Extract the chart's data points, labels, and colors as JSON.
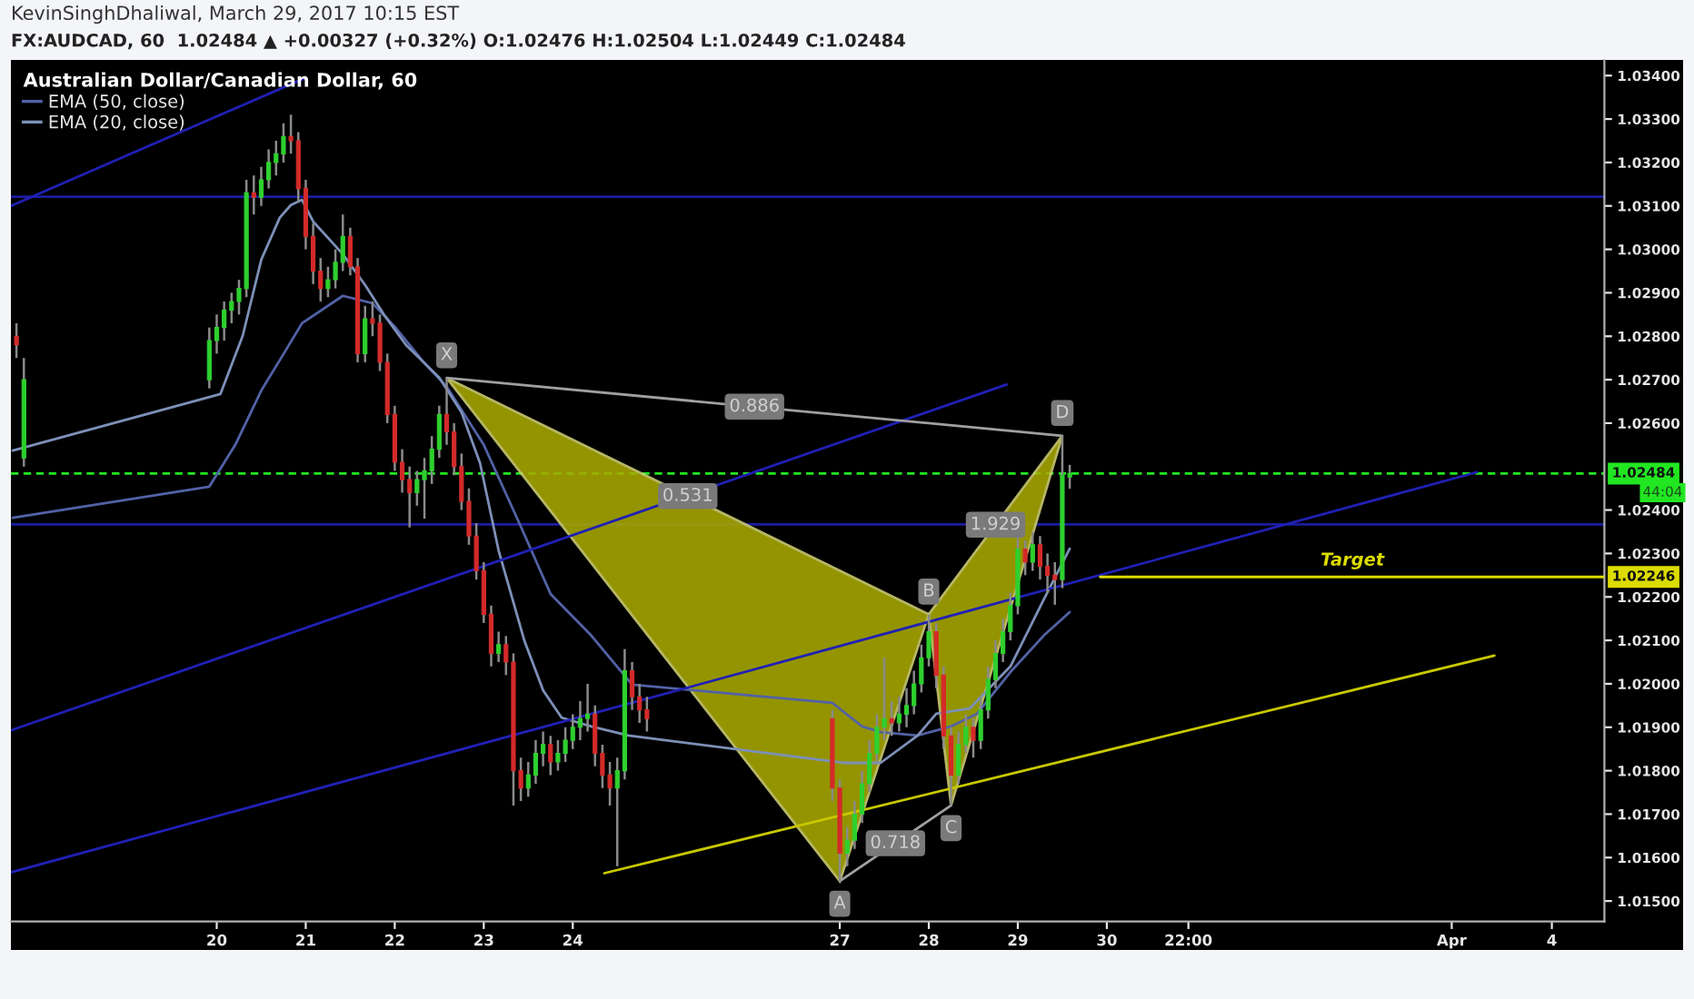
{
  "chart_data": {
    "type": "candlestick",
    "title": "KevinSinghDhaliwal, March 29, 2017 10:15 EST",
    "subtitle": "FX:AUDCAD, 60  1.02484 ▲ +0.00327 (+0.32%) O:1.02476 H:1.02504 L:1.02449 C:1.02484",
    "legend_title": "Australian Dollar/Canadian Dollar, 60",
    "legend": "top left",
    "xlim": [
      "2017-03-17T16:30",
      "2017-04-04T14:10"
    ],
    "ylim": [
      1.01453,
      1.03436
    ],
    "xticks": [
      {
        "value": "2017-03-20",
        "label": "20"
      },
      {
        "value": "2017-03-21",
        "label": "21"
      },
      {
        "value": "2017-03-22",
        "label": "22"
      },
      {
        "value": "2017-03-23",
        "label": "23"
      },
      {
        "value": "2017-03-24",
        "label": "24"
      },
      {
        "value": "2017-03-27",
        "label": "27"
      },
      {
        "value": "2017-03-28",
        "label": "28"
      },
      {
        "value": "2017-03-29",
        "label": "29"
      },
      {
        "value": "2017-03-30",
        "label": "30"
      },
      {
        "value": "2017-03-30T22:00",
        "label": "22:00"
      },
      {
        "value": "2017-04-02T21:00",
        "label": "Apr"
      },
      {
        "value": "2017-04-04",
        "label": "4"
      }
    ],
    "yticks": [
      {
        "value": 1.015,
        "label": "1.01500"
      },
      {
        "value": 1.016,
        "label": "1.01600"
      },
      {
        "value": 1.017,
        "label": "1.01700"
      },
      {
        "value": 1.018,
        "label": "1.01800"
      },
      {
        "value": 1.019,
        "label": "1.01900"
      },
      {
        "value": 1.02,
        "label": "1.02000"
      },
      {
        "value": 1.021,
        "label": "1.02100"
      },
      {
        "value": 1.022,
        "label": "1.02200"
      },
      {
        "value": 1.023,
        "label": "1.02300"
      },
      {
        "value": 1.024,
        "label": "1.02400"
      },
      {
        "value": 1.026,
        "label": "1.02600"
      },
      {
        "value": 1.027,
        "label": "1.02700"
      },
      {
        "value": 1.028,
        "label": "1.02800"
      },
      {
        "value": 1.029,
        "label": "1.02900"
      },
      {
        "value": 1.03,
        "label": "1.03000"
      },
      {
        "value": 1.031,
        "label": "1.03100"
      },
      {
        "value": 1.032,
        "label": "1.03200"
      },
      {
        "value": 1.033,
        "label": "1.03300"
      },
      {
        "value": 1.034,
        "label": "1.03400"
      }
    ],
    "series": [
      {
        "color": "#8a8a8a",
        "x": [
          "2017-03-17T18:00",
          "2017-03-17T20:00",
          "2017-03-19T22:00",
          "2017-03-20T00:00",
          "2017-03-20T02:00",
          "2017-03-20T04:00",
          "2017-03-20T06:00",
          "2017-03-20T08:00",
          "2017-03-20T10:00",
          "2017-03-20T12:00",
          "2017-03-20T14:00",
          "2017-03-20T16:00",
          "2017-03-20T18:00",
          "2017-03-20T20:00",
          "2017-03-20T22:00",
          "2017-03-21T00:00",
          "2017-03-21T02:00",
          "2017-03-21T04:00",
          "2017-03-21T06:00",
          "2017-03-21T08:00",
          "2017-03-21T10:00",
          "2017-03-21T12:00",
          "2017-03-21T14:00",
          "2017-03-21T16:00",
          "2017-03-21T18:00",
          "2017-03-21T20:00",
          "2017-03-21T22:00",
          "2017-03-22T00:00",
          "2017-03-22T02:00",
          "2017-03-22T04:00",
          "2017-03-22T06:00",
          "2017-03-22T08:00",
          "2017-03-22T10:00",
          "2017-03-22T12:00",
          "2017-03-22T14:00",
          "2017-03-22T16:00",
          "2017-03-22T18:00",
          "2017-03-22T20:00",
          "2017-03-22T22:00",
          "2017-03-23T00:00",
          "2017-03-23T02:00",
          "2017-03-23T04:00",
          "2017-03-23T06:00",
          "2017-03-23T08:00",
          "2017-03-23T10:00",
          "2017-03-23T12:00",
          "2017-03-23T14:00",
          "2017-03-23T16:00",
          "2017-03-23T18:00",
          "2017-03-23T20:00",
          "2017-03-23T22:00",
          "2017-03-24T00:00",
          "2017-03-24T02:00",
          "2017-03-24T04:00",
          "2017-03-24T06:00",
          "2017-03-24T08:00",
          "2017-03-24T10:00",
          "2017-03-24T12:00",
          "2017-03-24T14:00",
          "2017-03-24T16:00",
          "2017-03-24T18:00",
          "2017-03-24T20:00",
          "2017-03-26T22:00",
          "2017-03-27T00:00",
          "2017-03-27T02:00",
          "2017-03-27T04:00",
          "2017-03-27T06:00",
          "2017-03-27T08:00",
          "2017-03-27T10:00",
          "2017-03-27T12:00",
          "2017-03-27T14:00",
          "2017-03-27T16:00",
          "2017-03-27T18:00",
          "2017-03-27T20:00",
          "2017-03-27T22:00",
          "2017-03-28T00:00",
          "2017-03-28T02:00",
          "2017-03-28T04:00",
          "2017-03-28T06:00",
          "2017-03-28T08:00",
          "2017-03-28T10:00",
          "2017-03-28T12:00",
          "2017-03-28T14:00",
          "2017-03-28T16:00",
          "2017-03-28T18:00",
          "2017-03-28T20:00",
          "2017-03-28T22:00",
          "2017-03-29T00:00",
          "2017-03-29T02:00",
          "2017-03-29T04:00",
          "2017-03-29T06:00",
          "2017-03-29T08:00",
          "2017-03-29T10:00",
          "2017-03-29T12:00",
          "2017-03-29T14:00"
        ],
        "ohlc": [
          [
            1.028,
            1.0283,
            1.0275,
            1.0278
          ],
          [
            1.0252,
            1.0275,
            1.025,
            1.027
          ],
          [
            1.027,
            1.0282,
            1.0268,
            1.0279
          ],
          [
            1.0279,
            1.0285,
            1.0276,
            1.0282
          ],
          [
            1.0282,
            1.0288,
            1.0279,
            1.0286
          ],
          [
            1.0286,
            1.029,
            1.0283,
            1.0288
          ],
          [
            1.0288,
            1.0293,
            1.0285,
            1.0291
          ],
          [
            1.0291,
            1.0316,
            1.0289,
            1.0313
          ],
          [
            1.0313,
            1.0317,
            1.0308,
            1.0312
          ],
          [
            1.0312,
            1.0319,
            1.031,
            1.0316
          ],
          [
            1.0316,
            1.0323,
            1.0314,
            1.032
          ],
          [
            1.032,
            1.0325,
            1.0317,
            1.0322
          ],
          [
            1.0322,
            1.0329,
            1.032,
            1.0326
          ],
          [
            1.0326,
            1.0331,
            1.0322,
            1.0325
          ],
          [
            1.0325,
            1.0327,
            1.0311,
            1.0314
          ],
          [
            1.0314,
            1.0316,
            1.03,
            1.0303
          ],
          [
            1.0303,
            1.0306,
            1.0292,
            1.0295
          ],
          [
            1.0295,
            1.0298,
            1.0288,
            1.0291
          ],
          [
            1.0291,
            1.0296,
            1.0289,
            1.0293
          ],
          [
            1.0293,
            1.03,
            1.0291,
            1.0297
          ],
          [
            1.0297,
            1.0308,
            1.0295,
            1.0303
          ],
          [
            1.0303,
            1.0305,
            1.0294,
            1.0296
          ],
          [
            1.0296,
            1.0298,
            1.0274,
            1.0276
          ],
          [
            1.0276,
            1.0287,
            1.0274,
            1.0284
          ],
          [
            1.0284,
            1.0288,
            1.028,
            1.0283
          ],
          [
            1.0283,
            1.0285,
            1.0272,
            1.0274
          ],
          [
            1.0274,
            1.0276,
            1.026,
            1.0262
          ],
          [
            1.0262,
            1.0264,
            1.0249,
            1.0251
          ],
          [
            1.0251,
            1.0254,
            1.0244,
            1.0247
          ],
          [
            1.0247,
            1.025,
            1.0236,
            1.0244
          ],
          [
            1.0244,
            1.0249,
            1.0241,
            1.0247
          ],
          [
            1.0247,
            1.0252,
            1.0238,
            1.0249
          ],
          [
            1.0249,
            1.0257,
            1.0246,
            1.0254
          ],
          [
            1.0254,
            1.0264,
            1.0252,
            1.0262
          ],
          [
            1.0262,
            1.02704,
            1.0255,
            1.0258
          ],
          [
            1.0258,
            1.026,
            1.0248,
            1.025
          ],
          [
            1.025,
            1.0253,
            1.024,
            1.0242
          ],
          [
            1.0242,
            1.0245,
            1.0232,
            1.0234
          ],
          [
            1.0234,
            1.0237,
            1.0224,
            1.0226
          ],
          [
            1.0226,
            1.0228,
            1.0214,
            1.0216
          ],
          [
            1.0216,
            1.0218,
            1.0204,
            1.0207
          ],
          [
            1.0207,
            1.0212,
            1.0205,
            1.0209
          ],
          [
            1.0209,
            1.0211,
            1.0202,
            1.0205
          ],
          [
            1.0205,
            1.0207,
            1.0172,
            1.018
          ],
          [
            1.018,
            1.0183,
            1.0173,
            1.0176
          ],
          [
            1.0176,
            1.0182,
            1.0174,
            1.0179
          ],
          [
            1.0179,
            1.0187,
            1.0177,
            1.0184
          ],
          [
            1.0184,
            1.0189,
            1.0181,
            1.0186
          ],
          [
            1.0186,
            1.0188,
            1.0179,
            1.0182
          ],
          [
            1.0182,
            1.0187,
            1.018,
            1.0184
          ],
          [
            1.0184,
            1.019,
            1.0182,
            1.0187
          ],
          [
            1.0187,
            1.0193,
            1.0185,
            1.019
          ],
          [
            1.019,
            1.0196,
            1.0187,
            1.0192
          ],
          [
            1.0192,
            1.02,
            1.0189,
            1.0193
          ],
          [
            1.0193,
            1.0195,
            1.0181,
            1.0184
          ],
          [
            1.0184,
            1.0186,
            1.0176,
            1.0179
          ],
          [
            1.0179,
            1.0182,
            1.0172,
            1.0176
          ],
          [
            1.0176,
            1.0183,
            1.0158,
            1.018
          ],
          [
            1.018,
            1.0208,
            1.0178,
            1.0203
          ],
          [
            1.0203,
            1.0205,
            1.0194,
            1.0197
          ],
          [
            1.0197,
            1.02,
            1.0191,
            1.0194
          ],
          [
            1.0194,
            1.0197,
            1.0189,
            1.0192
          ],
          [
            1.0192,
            1.0194,
            1.0173,
            1.0176
          ],
          [
            1.0176,
            1.0178,
            1.01546,
            1.0161
          ],
          [
            1.0161,
            1.0167,
            1.0158,
            1.0164
          ],
          [
            1.0164,
            1.0173,
            1.0162,
            1.017
          ],
          [
            1.017,
            1.018,
            1.0168,
            1.0177
          ],
          [
            1.0177,
            1.0187,
            1.0175,
            1.0184
          ],
          [
            1.0184,
            1.0193,
            1.0182,
            1.019
          ],
          [
            1.019,
            1.0206,
            1.0187,
            1.0192
          ],
          [
            1.0192,
            1.0196,
            1.0188,
            1.0191
          ],
          [
            1.0191,
            1.0197,
            1.0189,
            1.0193
          ],
          [
            1.0193,
            1.0199,
            1.019,
            1.0195
          ],
          [
            1.0195,
            1.0203,
            1.0193,
            1.02
          ],
          [
            1.02,
            1.0209,
            1.0198,
            1.0206
          ],
          [
            1.0206,
            1.0216,
            1.0204,
            1.0212
          ],
          [
            1.0212,
            1.0214,
            1.0199,
            1.0202
          ],
          [
            1.0202,
            1.0204,
            1.0185,
            1.0188
          ],
          [
            1.0188,
            1.019,
            1.0172,
            1.0179
          ],
          [
            1.0179,
            1.0189,
            1.0177,
            1.0186
          ],
          [
            1.0186,
            1.0193,
            1.0184,
            1.019
          ],
          [
            1.019,
            1.0192,
            1.0183,
            1.0187
          ],
          [
            1.0187,
            1.0197,
            1.0185,
            1.0194
          ],
          [
            1.0194,
            1.0204,
            1.0192,
            1.0201
          ],
          [
            1.0201,
            1.021,
            1.0199,
            1.0207
          ],
          [
            1.0207,
            1.0215,
            1.0205,
            1.0212
          ],
          [
            1.0212,
            1.0221,
            1.021,
            1.0218
          ],
          [
            1.0218,
            1.0234,
            1.0216,
            1.0231
          ],
          [
            1.0231,
            1.0233,
            1.0225,
            1.0228
          ],
          [
            1.0228,
            1.0235,
            1.0226,
            1.0232
          ],
          [
            1.0232,
            1.0234,
            1.0224,
            1.0227
          ],
          [
            1.0227,
            1.023,
            1.0221,
            1.0225
          ],
          [
            1.0225,
            1.0228,
            1.02182,
            1.0224
          ],
          [
            1.0224,
            1.02571,
            1.0222,
            1.0248
          ],
          [
            1.02476,
            1.02504,
            1.02449,
            1.02484
          ]
        ],
        "colors": [
          "#d42a2a",
          "#2ed02e",
          "#2ed02e",
          "#2ed02e",
          "#2ed02e",
          "#2ed02e",
          "#2ed02e",
          "#2ed02e",
          "#d42a2a",
          "#2ed02e",
          "#2ed02e",
          "#2ed02e",
          "#2ed02e",
          "#d42a2a",
          "#d42a2a",
          "#d42a2a",
          "#d42a2a",
          "#d42a2a",
          "#2ed02e",
          "#2ed02e",
          "#2ed02e",
          "#d42a2a",
          "#d42a2a",
          "#2ed02e",
          "#d42a2a",
          "#d42a2a",
          "#d42a2a",
          "#d42a2a",
          "#d42a2a",
          "#d42a2a",
          "#2ed02e",
          "#2ed02e",
          "#2ed02e",
          "#2ed02e",
          "#d42a2a",
          "#d42a2a",
          "#d42a2a",
          "#d42a2a",
          "#d42a2a",
          "#d42a2a",
          "#d42a2a",
          "#2ed02e",
          "#d42a2a",
          "#d42a2a",
          "#d42a2a",
          "#2ed02e",
          "#2ed02e",
          "#2ed02e",
          "#d42a2a",
          "#2ed02e",
          "#2ed02e",
          "#2ed02e",
          "#2ed02e",
          "#2ed02e",
          "#d42a2a",
          "#d42a2a",
          "#d42a2a",
          "#2ed02e",
          "#2ed02e",
          "#d42a2a",
          "#d42a2a",
          "#d42a2a",
          "#d42a2a",
          "#d42a2a",
          "#2ed02e",
          "#2ed02e",
          "#2ed02e",
          "#2ed02e",
          "#2ed02e",
          "#2ed02e",
          "#d42a2a",
          "#2ed02e",
          "#2ed02e",
          "#2ed02e",
          "#2ed02e",
          "#2ed02e",
          "#d42a2a",
          "#d42a2a",
          "#d42a2a",
          "#2ed02e",
          "#2ed02e",
          "#d42a2a",
          "#2ed02e",
          "#2ed02e",
          "#2ed02e",
          "#2ed02e",
          "#2ed02e",
          "#2ed02e",
          "#d42a2a",
          "#2ed02e",
          "#d42a2a",
          "#d42a2a",
          "#d42a2a",
          "#2ed02e",
          "#2ed02e"
        ]
      },
      {
        "type": "line",
        "name": "EMA (50, close)",
        "color": "#5262a6",
        "x": [
          "2017-03-17T17:00",
          "2017-03-19T22:00",
          "2017-03-20T05:00",
          "2017-03-20T12:00",
          "2017-03-20T18:00",
          "2017-03-20T23:00",
          "2017-03-21T10:00",
          "2017-03-21T18:00",
          "2017-03-22T00:00",
          "2017-03-22T08:00",
          "2017-03-22T14:00",
          "2017-03-23T00:00",
          "2017-03-23T10:00",
          "2017-03-23T18:00",
          "2017-03-24T05:00",
          "2017-03-24T16:00",
          "2017-03-26T22:00",
          "2017-03-27T06:00",
          "2017-03-27T11:00",
          "2017-03-27T21:00",
          "2017-03-28T06:00",
          "2017-03-28T13:00",
          "2017-03-28T22:00",
          "2017-03-29T07:00",
          "2017-03-29T14:00"
        ],
        "values": [
          1.02382,
          1.02454,
          1.0255,
          1.02675,
          1.02759,
          1.0283,
          1.02893,
          1.02876,
          1.02822,
          1.02738,
          1.02684,
          1.0255,
          1.02362,
          1.02207,
          1.02111,
          1.01998,
          1.01956,
          1.01902,
          1.01889,
          1.01881,
          1.01902,
          1.01931,
          1.02027,
          1.02111,
          1.02165
        ]
      },
      {
        "type": "line",
        "name": "EMA (20, close)",
        "color": "#7d90b8",
        "x": [
          "2017-03-17T17:00",
          "2017-03-20T01:00",
          "2017-03-20T07:00",
          "2017-03-20T12:00",
          "2017-03-20T17:00",
          "2017-03-20T20:00",
          "2017-03-20T23:00",
          "2017-03-21T02:00",
          "2017-03-21T10:00",
          "2017-03-21T16:00",
          "2017-03-21T21:00",
          "2017-03-22T03:00",
          "2017-03-22T12:00",
          "2017-03-22T18:00",
          "2017-03-22T23:00",
          "2017-03-23T04:00",
          "2017-03-23T11:00",
          "2017-03-23T16:00",
          "2017-03-23T21:00",
          "2017-03-24T05:00",
          "2017-03-24T15:00",
          "2017-03-27T01:00",
          "2017-03-27T11:00",
          "2017-03-27T21:00",
          "2017-03-28T02:00",
          "2017-03-28T11:00",
          "2017-03-28T22:00",
          "2017-03-29T07:00",
          "2017-03-29T14:00"
        ],
        "values": [
          1.02537,
          1.02667,
          1.02801,
          1.02976,
          1.03073,
          1.03102,
          1.03114,
          1.03064,
          1.02989,
          1.02918,
          1.02851,
          1.0278,
          1.02705,
          1.02625,
          1.02508,
          1.02307,
          1.02098,
          1.01985,
          1.01922,
          1.01902,
          1.01881,
          1.01818,
          1.01818,
          1.01881,
          1.01931,
          1.01943,
          1.0204,
          1.02194,
          1.02311
        ]
      },
      {
        "type": "line",
        "color": "#2020b4",
        "x": [
          "2017-03-17T16:30",
          "2017-03-21T00:00"
        ],
        "values": [
          1.031,
          1.03395
        ]
      },
      {
        "type": "line",
        "color": "#2020b4",
        "x": [
          "2017-03-17T16:30",
          "2017-03-28T21:00"
        ],
        "values": [
          1.01893,
          1.02689
        ]
      },
      {
        "type": "line",
        "color": "#2020b4",
        "x": [
          "2017-03-17T16:30",
          "2017-04-03T03:45"
        ],
        "values": [
          1.01566,
          1.02487
        ]
      },
      {
        "type": "line",
        "color": "#c8c800",
        "x": [
          "2017-03-24T08:30",
          "2017-04-03T08:30"
        ],
        "values": [
          1.01564,
          1.02065
        ]
      },
      {
        "type": "line",
        "name": "Target",
        "color": "#dcdc00",
        "x": [
          "2017-03-29T22:15",
          "2017-04-04T14:10"
        ],
        "values": [
          1.02246,
          1.02246
        ],
        "value_labels": [
          null,
          "1.02246"
        ]
      },
      {
        "type": "area",
        "color": "#a9a900",
        "x": [
          "2017-03-22T14:00",
          "2017-03-27T00:00",
          "2017-03-28T00:00"
        ],
        "values": [
          1.02704,
          1.01546,
          1.0216
        ]
      },
      {
        "type": "area",
        "color": "#a9a900",
        "x": [
          "2017-03-28T00:00",
          "2017-03-28T06:00",
          "2017-03-29T12:00"
        ],
        "values": [
          1.0216,
          1.0172,
          1.02571
        ]
      },
      {
        "type": "line",
        "color": "#a0a0a0",
        "x": [
          "2017-03-22T14:00",
          "2017-03-29T12:00"
        ],
        "values": [
          1.02704,
          1.02571
        ]
      },
      {
        "type": "line",
        "color": "#a0a0a0",
        "x": [
          "2017-03-27T00:00",
          "2017-03-28T06:00"
        ],
        "values": [
          1.01546,
          1.0172
        ]
      }
    ],
    "ref_lines": [
      {
        "axis": "y",
        "value": 1.03121,
        "color": "#1c1ca0"
      },
      {
        "axis": "y",
        "value": 1.02367,
        "color": "#1c1ca0"
      },
      {
        "axis": "y",
        "value": 1.02484,
        "label": "1.02484",
        "color": "#22e622",
        "line_style": "dashed"
      }
    ],
    "annotations": [
      {
        "text": "X",
        "x": "2017-03-22T14:00",
        "y": 1.02704
      },
      {
        "text": "A",
        "x": "2017-03-27T00:00",
        "y": 1.01546
      },
      {
        "text": "B",
        "x": "2017-03-28T00:00",
        "y": 1.0216
      },
      {
        "text": "C",
        "x": "2017-03-28T06:00",
        "y": 1.0172
      },
      {
        "text": "D",
        "x": "2017-03-29T12:00",
        "y": 1.02571
      },
      {
        "text": "0.886",
        "x": "2017-03-26T01:00",
        "y": 1.02638
      },
      {
        "text": "0.531",
        "x": "2017-03-25T07:00",
        "y": 1.02432
      },
      {
        "text": "1.929",
        "x": "2017-03-28T18:00",
        "y": 1.02366
      },
      {
        "text": "0.718",
        "x": "2017-03-27T15:00",
        "y": 1.01633
      },
      "44:04"
    ]
  }
}
